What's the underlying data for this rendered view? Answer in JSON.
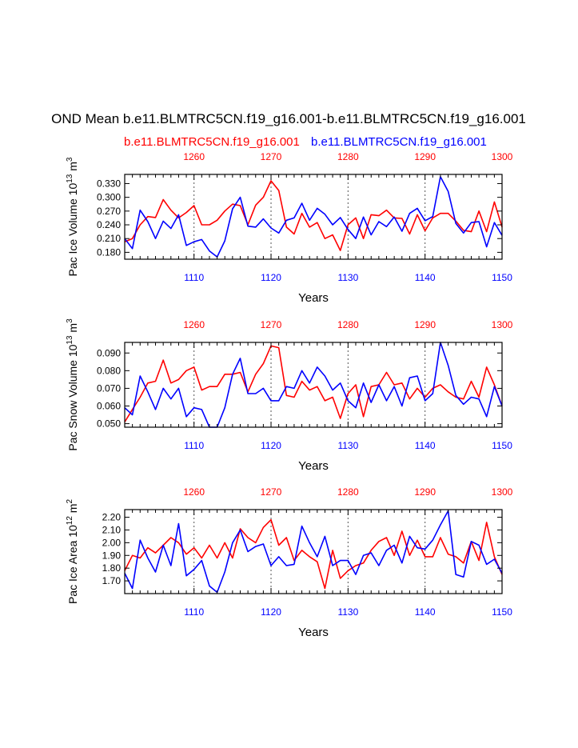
{
  "page_title": "OND Mean b.e11.BLMTRC5CN.f19_g16.001-b.e11.BLMTRC5CN.f19_g16.001",
  "legend": {
    "red_label": "b.e11.BLMTRC5CN.f19_g16.001",
    "blue_label": "b.e11.BLMTRC5CN.f19_g16.001"
  },
  "colors": {
    "red": "#ff0000",
    "blue": "#0000ff",
    "axis": "#000000",
    "grid": "#555555"
  },
  "chart_data": [
    {
      "type": "line",
      "ylabel_text": "Pac Ice Volume 10",
      "ylabel_exp": "13",
      "ylabel_unit": "m",
      "ylabel_unit_exp": "3",
      "xlabel": "Years",
      "xlim": [
        1101,
        1150
      ],
      "ylim": [
        0.165,
        0.35
      ],
      "yticks": [
        0.18,
        0.21,
        0.24,
        0.27,
        0.3,
        0.33
      ],
      "ytick_labels": [
        "0.180",
        "0.210",
        "0.240",
        "0.270",
        "0.300",
        "0.330"
      ],
      "bottom_ticks": [
        1110,
        1120,
        1130,
        1140,
        1150
      ],
      "top_ticks": [
        1260,
        1270,
        1280,
        1290,
        1300
      ],
      "grid": "vertical dashed at 1110, 1120, 1130, 1140",
      "series": [
        {
          "name": "b.e11.BLMTRC5CN.f19_g16.001",
          "color": "red",
          "top_axis": [
            1251,
            1300
          ],
          "values": [
            0.203,
            0.21,
            0.24,
            0.258,
            0.256,
            0.295,
            0.272,
            0.255,
            0.267,
            0.282,
            0.24,
            0.24,
            0.25,
            0.27,
            0.285,
            0.282,
            0.24,
            0.283,
            0.3,
            0.336,
            0.315,
            0.235,
            0.22,
            0.265,
            0.235,
            0.245,
            0.21,
            0.218,
            0.184,
            0.24,
            0.255,
            0.21,
            0.262,
            0.26,
            0.272,
            0.255,
            0.254,
            0.22,
            0.262,
            0.227,
            0.255,
            0.265,
            0.265,
            0.248,
            0.228,
            0.225,
            0.27,
            0.225,
            0.29,
            0.235
          ]
        },
        {
          "name": "b.e11.BLMTRC5CN.f19_g16.001",
          "color": "blue",
          "top_axis": [
            1101,
            1150
          ],
          "values": [
            0.21,
            0.188,
            0.272,
            0.247,
            0.21,
            0.248,
            0.232,
            0.262,
            0.195,
            0.203,
            0.208,
            0.183,
            0.17,
            0.205,
            0.275,
            0.3,
            0.237,
            0.235,
            0.253,
            0.233,
            0.222,
            0.25,
            0.255,
            0.287,
            0.25,
            0.276,
            0.263,
            0.24,
            0.256,
            0.23,
            0.21,
            0.257,
            0.218,
            0.247,
            0.236,
            0.257,
            0.226,
            0.265,
            0.276,
            0.249,
            0.258,
            0.345,
            0.313,
            0.243,
            0.222,
            0.245,
            0.247,
            0.192,
            0.245,
            0.217
          ]
        }
      ]
    },
    {
      "type": "line",
      "ylabel_text": "Pac Snow Volume 10",
      "ylabel_exp": "13",
      "ylabel_unit": "m",
      "ylabel_unit_exp": "3",
      "xlabel": "Years",
      "xlim": [
        1101,
        1150
      ],
      "ylim": [
        0.048,
        0.096
      ],
      "yticks": [
        0.05,
        0.06,
        0.07,
        0.08,
        0.09
      ],
      "ytick_labels": [
        "0.050",
        "0.060",
        "0.070",
        "0.080",
        "0.090"
      ],
      "bottom_ticks": [
        1110,
        1120,
        1130,
        1140,
        1150
      ],
      "top_ticks": [
        1260,
        1270,
        1280,
        1290,
        1300
      ],
      "grid": "vertical dashed at 1110, 1120, 1130, 1140",
      "series": [
        {
          "name": "b.e11.BLMTRC5CN.f19_g16.001",
          "color": "red",
          "values": [
            0.051,
            0.058,
            0.065,
            0.073,
            0.074,
            0.086,
            0.073,
            0.075,
            0.08,
            0.082,
            0.069,
            0.071,
            0.071,
            0.078,
            0.078,
            0.079,
            0.068,
            0.078,
            0.084,
            0.094,
            0.093,
            0.066,
            0.065,
            0.074,
            0.069,
            0.071,
            0.063,
            0.065,
            0.053,
            0.067,
            0.072,
            0.054,
            0.071,
            0.072,
            0.079,
            0.072,
            0.073,
            0.064,
            0.07,
            0.065,
            0.07,
            0.072,
            0.068,
            0.065,
            0.064,
            0.074,
            0.065,
            0.082,
            0.072,
            0.06
          ]
        },
        {
          "name": "b.e11.BLMTRC5CN.f19_g16.001",
          "color": "blue",
          "values": [
            0.059,
            0.055,
            0.077,
            0.068,
            0.058,
            0.07,
            0.064,
            0.07,
            0.054,
            0.059,
            0.058,
            0.048,
            0.048,
            0.059,
            0.078,
            0.087,
            0.067,
            0.067,
            0.07,
            0.063,
            0.063,
            0.071,
            0.07,
            0.08,
            0.073,
            0.082,
            0.077,
            0.069,
            0.073,
            0.063,
            0.059,
            0.073,
            0.062,
            0.072,
            0.063,
            0.071,
            0.06,
            0.076,
            0.077,
            0.063,
            0.067,
            0.096,
            0.083,
            0.066,
            0.061,
            0.065,
            0.064,
            0.054,
            0.071,
            0.06
          ]
        }
      ]
    },
    {
      "type": "line",
      "ylabel_text": "Pac Ice Area 10",
      "ylabel_exp": "12",
      "ylabel_unit": "m",
      "ylabel_unit_exp": "2",
      "xlabel": "Years",
      "xlim": [
        1101,
        1150
      ],
      "ylim": [
        1.6,
        2.26
      ],
      "yticks": [
        1.7,
        1.8,
        1.9,
        2.0,
        2.1,
        2.2
      ],
      "ytick_labels": [
        "1.70",
        "1.80",
        "1.90",
        "2.00",
        "2.10",
        "2.20"
      ],
      "bottom_ticks": [
        1110,
        1120,
        1130,
        1140,
        1150
      ],
      "top_ticks": [
        1260,
        1270,
        1280,
        1290,
        1300
      ],
      "grid": "vertical dashed at 1110, 1120, 1130, 1140",
      "series": [
        {
          "name": "b.e11.BLMTRC5CN.f19_g16.001",
          "color": "red",
          "values": [
            1.78,
            1.9,
            1.88,
            1.96,
            1.92,
            1.98,
            2.04,
            2.0,
            1.91,
            1.96,
            1.88,
            1.98,
            1.88,
            2.0,
            1.88,
            2.11,
            2.04,
            2.0,
            2.12,
            2.18,
            1.98,
            2.04,
            1.86,
            1.94,
            1.89,
            1.85,
            1.64,
            1.94,
            1.72,
            1.78,
            1.82,
            1.84,
            1.94,
            2.01,
            2.04,
            1.9,
            2.09,
            1.9,
            2.02,
            1.89,
            1.89,
            2.04,
            1.91,
            1.89,
            1.84,
            2.01,
            1.86,
            2.16,
            1.89,
            1.75
          ]
        },
        {
          "name": "b.e11.BLMTRC5CN.f19_g16.001",
          "color": "blue",
          "values": [
            1.76,
            1.64,
            2.02,
            1.88,
            1.77,
            1.98,
            1.82,
            2.15,
            1.74,
            1.79,
            1.86,
            1.66,
            1.61,
            1.77,
            2.0,
            2.1,
            1.93,
            1.97,
            1.99,
            1.82,
            1.89,
            1.82,
            1.83,
            2.13,
            2.0,
            1.89,
            2.05,
            1.82,
            1.86,
            1.86,
            1.75,
            1.9,
            1.92,
            1.82,
            1.94,
            1.98,
            1.84,
            2.05,
            1.96,
            1.95,
            2.02,
            2.14,
            2.25,
            1.75,
            1.73,
            2.01,
            1.98,
            1.83,
            1.87,
            1.76
          ]
        }
      ]
    }
  ]
}
